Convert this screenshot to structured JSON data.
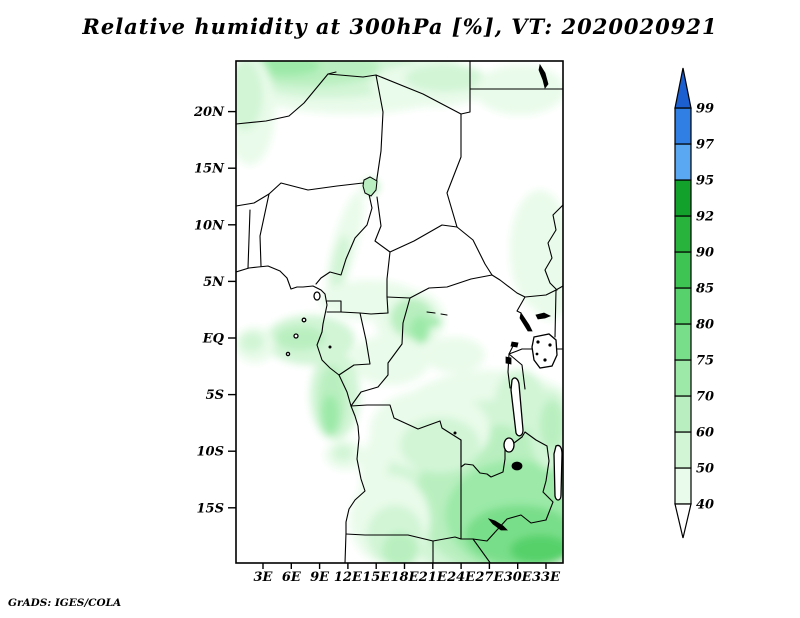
{
  "title": "Relative humidity at 300hPa [%], VT: 2020020921",
  "footer": "GrADS: IGES/COLA",
  "chart_data": {
    "type": "heatmap",
    "title": "Relative humidity at 300hPa [%], VT: 2020020921",
    "variable": "Relative humidity",
    "level": "300hPa",
    "units": "%",
    "valid_time": "2020020921",
    "projection": "lat-lon map of central Africa",
    "lon_range_deg_east": [
      0,
      35
    ],
    "lat_range_deg": [
      -20,
      24.5
    ],
    "x_ticks": [
      "3E",
      "6E",
      "9E",
      "12E",
      "15E",
      "18E",
      "21E",
      "24E",
      "27E",
      "30E",
      "33E"
    ],
    "y_ticks": [
      "20N",
      "15N",
      "10N",
      "5N",
      "EQ",
      "5S",
      "10S",
      "15S"
    ],
    "grid": false,
    "legend_position": "right colorbar with end arrows",
    "colorbar": {
      "levels_ascending": [
        40,
        50,
        60,
        70,
        75,
        80,
        85,
        90,
        92,
        95,
        97,
        99
      ],
      "labels_top_to_bottom": [
        "99",
        "97",
        "95",
        "92",
        "90",
        "85",
        "80",
        "75",
        "70",
        "60",
        "50",
        "40"
      ],
      "segment_colors_bottom_to_top": [
        "#ffffff",
        "#e9fbea",
        "#d2f5d6",
        "#b9efc0",
        "#9ce9a8",
        "#79de8a",
        "#57d16b",
        "#3ec453",
        "#28b33d",
        "#12a12b",
        "#5aa8f2",
        "#2f7fe4",
        "#1c5fd0"
      ],
      "under_arrow_color": "#ffffff",
      "over_arrow_color": "#1c5fd0"
    },
    "shaded_regions": [
      {
        "area": "northern band over Sahara (0-25E, 18-24.5N)",
        "value_range": "40-70%"
      },
      {
        "area": "faint patch northeast corner (25-35E, 20-24N)",
        "value_range": "40-50%"
      },
      {
        "area": "Lake Chad vicinity (13-14E, 12-13N)",
        "value_range": "40-60%"
      },
      {
        "area": "thin band along Nigeria/Cameroon border (10-13E, 5-12N)",
        "value_range": "40-50%"
      },
      {
        "area": "faint area east side (28-35E, 2-12N)",
        "value_range": "40-50%"
      },
      {
        "area": "equatorial patches Gabon/Congo/DRC (5-23E, 3N-4S)",
        "value_range": "40-70%"
      },
      {
        "area": "coastal band Gabon-Congo coast (9-13E, 2S-8S)",
        "value_range": "50-70%"
      },
      {
        "area": "large southeast region Angola/DRC/Zambia (12-35E, 5S-20S)",
        "value_range": "50-85%, brightest near 27-34E, 13-18S"
      }
    ],
    "map_features": [
      "country borders",
      "Lake Chad",
      "Lake Nasser",
      "Lake Victoria",
      "Lake Albert",
      "Lake Kyoga",
      "Lake Edward",
      "Lake Kivu",
      "Lake Tanganyika",
      "Lake Mweru",
      "Lake Bangweulu",
      "Lake Malawi",
      "Lake Kariba",
      "Bioko, Principe, Sao Tome, Annobon islands"
    ]
  }
}
